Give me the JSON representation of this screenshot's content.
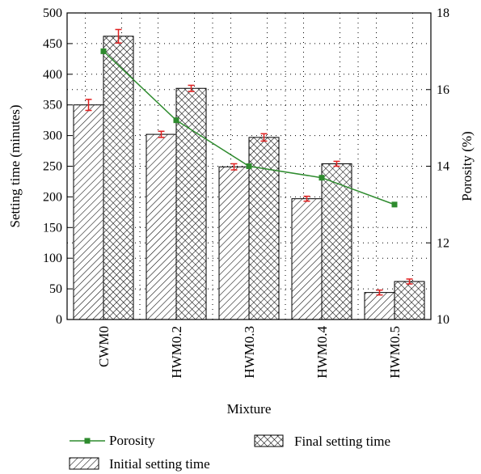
{
  "chart_data": {
    "type": "bar",
    "xlabel": "Mixture",
    "ylabel": "Setting time (minutes)",
    "y2label": "Porosity (%)",
    "categories": [
      "CWM0",
      "HWM0.2",
      "HWM0.3",
      "HWM0.4",
      "HWM0.5"
    ],
    "ylim": [
      0,
      500
    ],
    "yticks": [
      "0",
      "50",
      "100",
      "150",
      "200",
      "250",
      "300",
      "350",
      "400",
      "450",
      "500"
    ],
    "y2lim": [
      10,
      18
    ],
    "y2ticks": [
      "10",
      "12",
      "14",
      "16",
      "18"
    ],
    "grid": true,
    "legend_position": "bottom",
    "series": [
      {
        "name": "Initial setting time",
        "kind": "bar",
        "pattern": "diagonal-hatch",
        "values": [
          350,
          302,
          249,
          197,
          44
        ],
        "errors": [
          9,
          5,
          5,
          4,
          4
        ]
      },
      {
        "name": "Final setting time",
        "kind": "bar",
        "pattern": "cross-hatch",
        "values": [
          462,
          377,
          297,
          254,
          62
        ],
        "errors": [
          11,
          5,
          6,
          4,
          4
        ]
      },
      {
        "name": "Porosity",
        "kind": "line",
        "axis": "right",
        "color": "#2e8b2e",
        "values": [
          17.0,
          15.2,
          14.0,
          13.7,
          13.0
        ]
      }
    ],
    "error_bar_color": "#e02020"
  }
}
